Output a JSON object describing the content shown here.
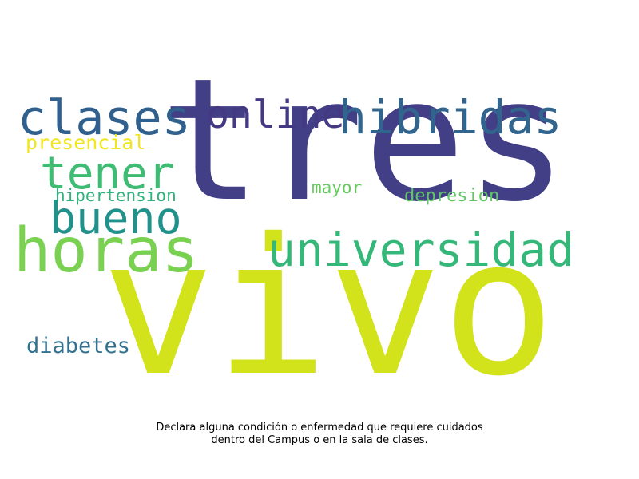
{
  "words": [
    {
      "text": "tres",
      "color": "#423f86"
    },
    {
      "text": "vivo",
      "color": "#d2e21b"
    },
    {
      "text": "clases",
      "color": "#30608d"
    },
    {
      "text": "online",
      "color": "#443a83"
    },
    {
      "text": "hibridas",
      "color": "#32658e"
    },
    {
      "text": "presencial",
      "color": "#f1e51d"
    },
    {
      "text": "tener",
      "color": "#3fbc73"
    },
    {
      "text": "hipertension",
      "color": "#2eb37c"
    },
    {
      "text": "bueno",
      "color": "#21918c"
    },
    {
      "text": "mayor",
      "color": "#65cb5e"
    },
    {
      "text": "depresion",
      "color": "#5ec962"
    },
    {
      "text": "horas",
      "color": "#7ad151"
    },
    {
      "text": "universidad",
      "color": "#35b779"
    },
    {
      "text": "diabetes",
      "color": "#33728e"
    }
  ],
  "caption": {
    "line1": "Declara alguna condición o enfermedad que requiere cuidados",
    "line2": "dentro del Campus o en la sala de clases."
  }
}
